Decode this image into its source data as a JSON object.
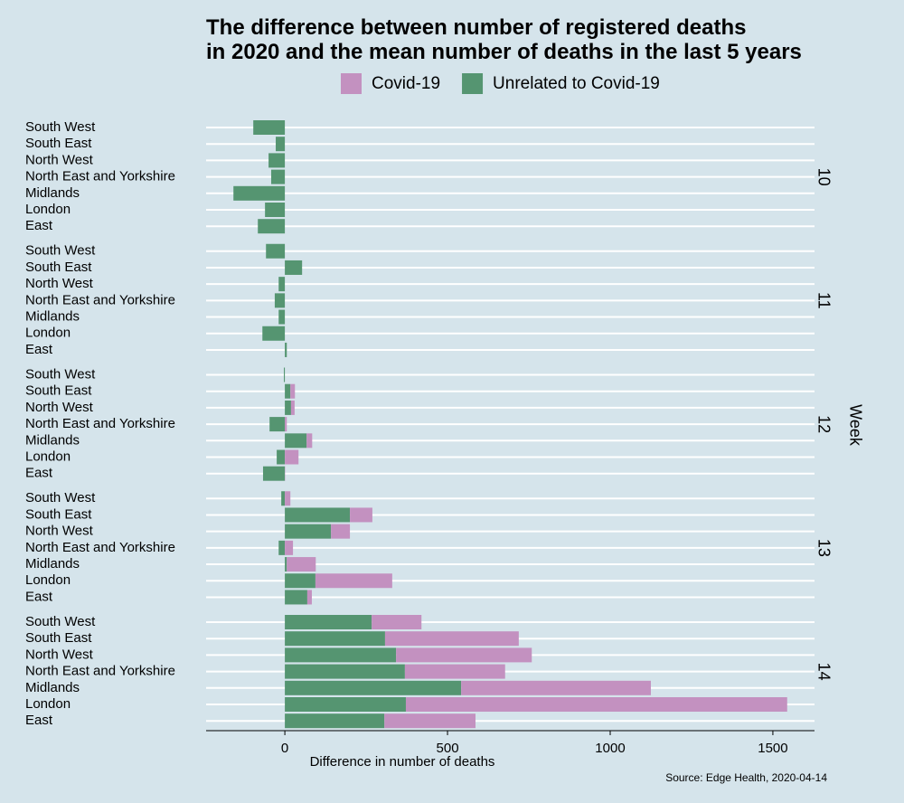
{
  "chart_data": {
    "type": "bar",
    "orientation": "horizontal",
    "stacked": true,
    "title": "The difference between number of registered deaths\nin 2020 and the mean number of deaths in the last 5 years",
    "facet_title": "Week",
    "facets": [
      "10",
      "11",
      "12",
      "13",
      "14"
    ],
    "categories": [
      "South West",
      "South East",
      "North West",
      "North East and Yorkshire",
      "Midlands",
      "London",
      "East"
    ],
    "series": [
      {
        "name": "Covid-19",
        "color": "#c391c0",
        "values": [
          [
            0,
            0,
            0,
            0,
            0,
            0,
            0
          ],
          [
            0,
            0,
            0,
            0,
            0,
            0,
            0
          ],
          [
            0,
            14,
            11,
            6,
            17,
            42,
            1
          ],
          [
            17,
            69,
            58,
            25,
            89,
            236,
            14
          ],
          [
            153,
            411,
            417,
            308,
            583,
            1172,
            280
          ]
        ]
      },
      {
        "name": "Unrelated to Covid-19",
        "color": "#559571",
        "values": [
          [
            -97,
            -28,
            -50,
            -42,
            -158,
            -61,
            -83
          ],
          [
            -58,
            53,
            -19,
            -31,
            -19,
            -69,
            6
          ],
          [
            -3,
            17,
            19,
            -47,
            67,
            -25,
            -67
          ],
          [
            -11,
            200,
            142,
            -19,
            6,
            94,
            69
          ],
          [
            267,
            308,
            342,
            369,
            542,
            372,
            306
          ]
        ]
      }
    ],
    "xlabel": "Difference in number of deaths",
    "xlim": [
      -242,
      1628
    ],
    "xticks": [
      0,
      500,
      1000,
      1500
    ],
    "source": "Source: Edge Health, 2020-04-14",
    "grid": true
  }
}
